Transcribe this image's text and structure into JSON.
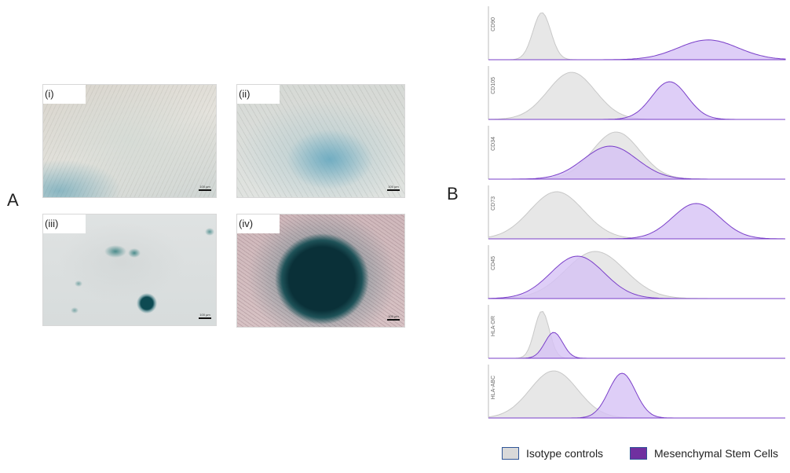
{
  "panel_a": {
    "letter": "A",
    "images": [
      {
        "label": "(i)",
        "scale": "100 µm",
        "kind": "monolayer-light"
      },
      {
        "label": "(ii)",
        "scale": "100 µm",
        "kind": "monolayer-nodule"
      },
      {
        "label": "(iii)",
        "scale": "100 µm",
        "kind": "sparse-aggregate"
      },
      {
        "label": "(iv)",
        "scale": "100 µm",
        "kind": "dense-nodule"
      }
    ]
  },
  "panel_b": {
    "letter": "B",
    "markers": [
      "CD90",
      "CD105",
      "CD34",
      "CD73",
      "CD45",
      "HLA-DR",
      "HLA-ABC"
    ],
    "colors": {
      "isotype": "#e3e3e3",
      "isotype_line": "#c8c8c8",
      "msc": "#d6c2f5",
      "msc_line": "#7a3fc9"
    }
  },
  "chart_data": {
    "type": "area",
    "title": "",
    "xlabel": "",
    "ylabel": "",
    "x_scale": "log fluorescence intensity (unlabeled)",
    "panels": [
      {
        "marker": "CD90",
        "isotype": {
          "peak": 0.18,
          "width": 0.03
        },
        "msc": {
          "peak": 0.74,
          "width": 0.1
        },
        "msc_height": 0.42
      },
      {
        "marker": "CD105",
        "isotype": {
          "peak": 0.28,
          "width": 0.08
        },
        "msc": {
          "peak": 0.61,
          "width": 0.06
        },
        "msc_height": 0.8
      },
      {
        "marker": "CD34",
        "isotype": {
          "peak": 0.43,
          "width": 0.08
        },
        "msc": {
          "peak": 0.41,
          "width": 0.09
        },
        "msc_height": 0.7
      },
      {
        "marker": "CD73",
        "isotype": {
          "peak": 0.23,
          "width": 0.09
        },
        "msc": {
          "peak": 0.7,
          "width": 0.08
        },
        "msc_height": 0.75
      },
      {
        "marker": "CD45",
        "isotype": {
          "peak": 0.36,
          "width": 0.1
        },
        "msc": {
          "peak": 0.3,
          "width": 0.09
        },
        "msc_height": 0.9
      },
      {
        "marker": "HLA-DR",
        "isotype": {
          "peak": 0.18,
          "width": 0.025
        },
        "msc": {
          "peak": 0.22,
          "width": 0.03
        },
        "msc_height": 0.55
      },
      {
        "marker": "HLA-ABC",
        "isotype": {
          "peak": 0.22,
          "width": 0.08
        },
        "msc": {
          "peak": 0.45,
          "width": 0.045
        },
        "msc_height": 0.95
      }
    ],
    "legend": [
      {
        "name": "Isotype controls",
        "color": "#d9d9d9"
      },
      {
        "name": "Mesenchymal Stem Cells",
        "color": "#7030a0"
      }
    ],
    "legend_position": "bottom"
  }
}
